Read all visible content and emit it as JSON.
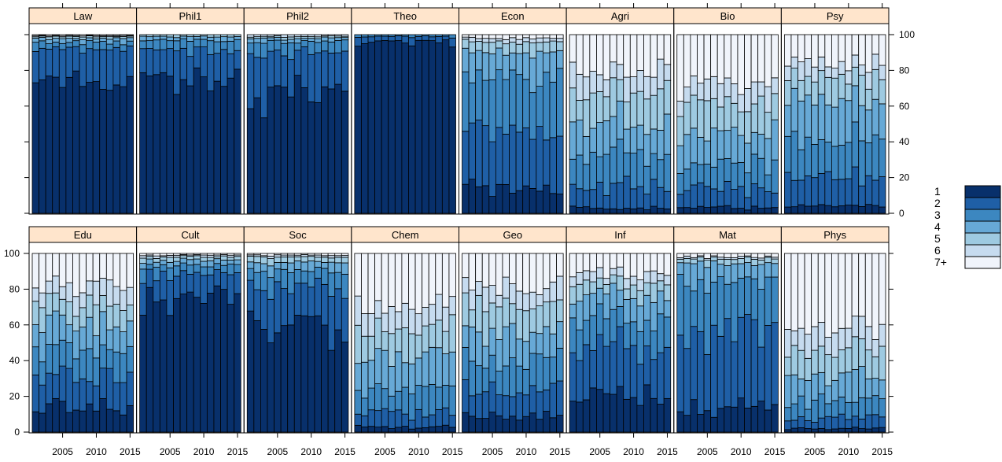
{
  "chart_data": {
    "type": "bar",
    "stacked": true,
    "panels": [
      "Law",
      "Phil1",
      "Phil2",
      "Theo",
      "Econ",
      "Agri",
      "Bio",
      "Psy",
      "Edu",
      "Cult",
      "Soc",
      "Chem",
      "Geo",
      "Inf",
      "Mat",
      "Phys"
    ],
    "x_ticks": [
      "2005",
      "2010",
      "2015"
    ],
    "y_ticks": [
      "0",
      "20",
      "40",
      "60",
      "80",
      "100"
    ],
    "ylim": [
      0,
      100
    ],
    "xlim": [
      2000,
      2015
    ],
    "legend": {
      "labels": [
        "1",
        "2",
        "3",
        "4",
        "5",
        "6",
        "7+"
      ],
      "colors": [
        "#08306b",
        "#1f5fa6",
        "#3c87c0",
        "#67a9d6",
        "#9ecae1",
        "#c6dbef",
        "#f0f4fb"
      ]
    },
    "grid": false,
    "legend_position": "right",
    "years": [
      2001,
      2002,
      2003,
      2004,
      2005,
      2006,
      2007,
      2008,
      2009,
      2010,
      2011,
      2012,
      2013,
      2014,
      2015
    ]
  }
}
